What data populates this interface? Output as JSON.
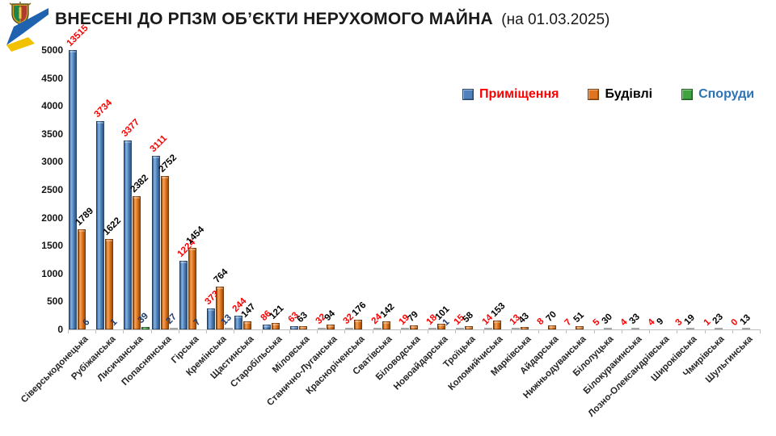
{
  "title": {
    "main": "ВНЕСЕНІ ДО РПЗМ ОБ’ЄКТИ НЕРУХОМОГО МАЙНА",
    "suffix": "(на 01.03.2025)"
  },
  "logo": {
    "description": "coat-of-arms with blue-yellow ribbon",
    "blue": "#1f63b0",
    "yellow": "#f2c200"
  },
  "chart_data": {
    "type": "bar",
    "title": "ВНЕСЕНІ ДО РПЗМ ОБ’ЄКТИ НЕРУХОМОГО МАЙНА (на 01.03.2025)",
    "xlabel": "",
    "ylabel": "",
    "ylim": [
      0,
      5000
    ],
    "ytick_step": 500,
    "yticks": [
      0,
      500,
      1000,
      1500,
      2000,
      2500,
      3000,
      3500,
      4000,
      4500,
      5000
    ],
    "grid": false,
    "legend_position": "top-right",
    "note": "first bar value 13515 exceeds axis maximum and is clipped at 5000",
    "categories": [
      "Сіверськодонецька",
      "Рубіжанська",
      "Лисичанська",
      "Попаснянська",
      "Гірська",
      "Кремінська",
      "Щастинська",
      "Старобільська",
      "Міловська",
      "Станично-Луганська",
      "Красноріченська",
      "Сватівська",
      "Біловодська",
      "Новоайдарська",
      "Троїцька",
      "Коломийчиська",
      "Марківська",
      "Айдарська",
      "Нижньодуванська",
      "Білолуцька",
      "Білокуракинська",
      "Лозно-Олександрівська",
      "Широківська",
      "Чмирівська",
      "Шульгинська"
    ],
    "series": [
      {
        "name": "Приміщення",
        "color": "#4F81BD",
        "label_color": "#FF0000",
        "legend_text_color": "#FF0000",
        "values": [
          13515,
          3734,
          3377,
          3111,
          1224,
          373,
          244,
          86,
          63,
          32,
          32,
          24,
          19,
          18,
          15,
          14,
          13,
          8,
          7,
          5,
          4,
          4,
          3,
          1,
          0
        ]
      },
      {
        "name": "Будівлі",
        "color": "#E1751E",
        "label_color": "#000000",
        "legend_text_color": "#000000",
        "values": [
          1789,
          1622,
          2382,
          2752,
          1454,
          764,
          147,
          121,
          63,
          94,
          176,
          142,
          79,
          101,
          58,
          153,
          43,
          70,
          51,
          30,
          33,
          9,
          19,
          23,
          13
        ]
      },
      {
        "name": "Споруди",
        "color": "#3FA43F",
        "label_color": "#1F3C6E",
        "legend_text_color": "#2E74B5",
        "values": [
          6,
          1,
          39,
          27,
          7,
          13,
          null,
          null,
          null,
          null,
          null,
          null,
          null,
          1,
          null,
          null,
          null,
          null,
          null,
          null,
          null,
          null,
          null,
          null,
          null
        ]
      }
    ]
  }
}
